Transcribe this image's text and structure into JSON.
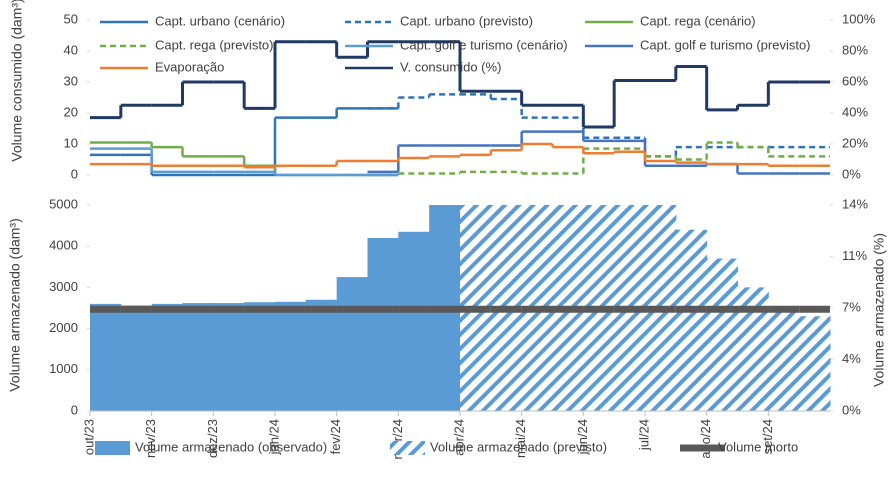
{
  "chart_data": [
    {
      "type": "line",
      "y_label": "Volume consumido (dam³)",
      "ylim": [
        0,
        50
      ],
      "yticks": [
        0,
        10,
        20,
        30,
        40,
        50
      ],
      "y2lim": [
        0,
        100
      ],
      "y2ticks": [
        {
          "value": 0,
          "label": "0%"
        },
        {
          "value": 20,
          "label": "20%"
        },
        {
          "value": 40,
          "label": "40%"
        },
        {
          "value": 60,
          "label": "60%"
        },
        {
          "value": 80,
          "label": "80%"
        },
        {
          "value": 100,
          "label": "100%"
        }
      ],
      "series": [
        {
          "name": "Capt. urbano (cenário)",
          "color": "#2e75b6",
          "style": "solid",
          "values": [
            6.5,
            6.5,
            0,
            0,
            0,
            0,
            18.5,
            18.5,
            21.5,
            21.5,
            null,
            null,
            null,
            null,
            null,
            null,
            null,
            null,
            null,
            null,
            null,
            null,
            null,
            null
          ]
        },
        {
          "name": "Capt. urbano (previsto)",
          "color": "#2e75b6",
          "style": "dashed",
          "values": [
            null,
            null,
            null,
            null,
            null,
            null,
            null,
            null,
            null,
            21.5,
            25,
            26,
            26,
            24.5,
            18.5,
            18.5,
            12,
            12,
            6,
            9,
            9,
            9,
            9,
            9
          ]
        },
        {
          "name": "Capt. rega (cenário)",
          "color": "#70ad47",
          "style": "solid",
          "values": [
            10.5,
            10.5,
            9,
            6,
            6,
            3,
            0,
            0,
            0,
            0,
            null,
            null,
            null,
            null,
            null,
            null,
            null,
            null,
            null,
            null,
            null,
            null,
            null,
            null
          ]
        },
        {
          "name": "Capt. rega (previsto)",
          "color": "#70ad47",
          "style": "dashed",
          "values": [
            null,
            null,
            null,
            null,
            null,
            null,
            null,
            null,
            null,
            0,
            0.5,
            0.5,
            1,
            1,
            0.5,
            0.5,
            8.5,
            8.5,
            6,
            5,
            10.5,
            9,
            6,
            6
          ]
        },
        {
          "name": "Capt. golf e turismo (cenário)",
          "color": "#5b9bd5",
          "style": "solid",
          "values": [
            8.5,
            8.5,
            1,
            1,
            1,
            1,
            0,
            0,
            0,
            0,
            null,
            null,
            null,
            null,
            null,
            null,
            null,
            null,
            null,
            null,
            null,
            null,
            null,
            null
          ]
        },
        {
          "name": "Capt. golf e turismo (previsto)",
          "color": "#4472c4",
          "style": "solid",
          "values": [
            null,
            null,
            null,
            null,
            null,
            null,
            null,
            null,
            null,
            1,
            9.5,
            9.5,
            9.5,
            9.5,
            14,
            14,
            11,
            11,
            3,
            3,
            3.5,
            0.5,
            0.5,
            0.5
          ]
        },
        {
          "name": "Evaporação",
          "color": "#ed7d31",
          "style": "solid",
          "values": [
            3.5,
            3.5,
            3,
            3,
            3,
            2.5,
            3,
            3,
            4.5,
            4.5,
            5.5,
            6,
            6.5,
            8,
            10,
            9,
            7,
            7.5,
            4.5,
            4,
            3.5,
            3.5,
            3,
            3
          ]
        },
        {
          "name": "V. consumido (%)",
          "color": "#1f3864",
          "style": "solid",
          "axis": "y2",
          "values": [
            37,
            45,
            45,
            60,
            60,
            43,
            86,
            86,
            76,
            86,
            86,
            86,
            54,
            54,
            45,
            45,
            31,
            61,
            61,
            70,
            42,
            45,
            60,
            60
          ]
        }
      ]
    },
    {
      "type": "area",
      "y_label": "Volume armazenado (dam³)",
      "y2_label": "Volume armazenado (%)",
      "categories": [
        "out/23",
        null,
        "nov/23",
        null,
        "dez/23",
        null,
        "jan/24",
        null,
        "fev/24",
        null,
        "mar/24",
        null,
        "abr/24",
        null,
        "mai/24",
        null,
        "jun/24",
        null,
        "jul/24",
        null,
        "ago/24",
        null,
        "set/24",
        null
      ],
      "ylim": [
        0,
        5000
      ],
      "yticks": [
        0,
        1000,
        2000,
        3000,
        4000,
        5000
      ],
      "y2lim": [
        0,
        14
      ],
      "y2ticks": [
        {
          "value": 0,
          "label": "0%"
        },
        {
          "value": 3.5,
          "label": "4%"
        },
        {
          "value": 7,
          "label": "7%"
        },
        {
          "value": 10.5,
          "label": "11%"
        },
        {
          "value": 14,
          "label": "14%"
        }
      ],
      "series": [
        {
          "name": "Volume armazenado (observado)",
          "color": "#5b9bd5",
          "fill": "solid",
          "values": [
            2600,
            2560,
            2600,
            2620,
            2620,
            2640,
            2650,
            2700,
            3250,
            4200,
            4350,
            5000,
            null,
            null,
            null,
            null,
            null,
            null,
            null,
            null,
            null,
            null,
            null,
            null
          ]
        },
        {
          "name": "Volume armazenado (previsto)",
          "color": "#5b9bd5",
          "fill": "hatch",
          "values": [
            null,
            null,
            null,
            null,
            null,
            null,
            null,
            null,
            null,
            null,
            null,
            null,
            5000,
            5000,
            5000,
            5000,
            5000,
            5000,
            5000,
            4400,
            3700,
            3000,
            2400,
            2300
          ]
        },
        {
          "name": "Volume morto",
          "color": "#595959",
          "fill": "line",
          "values": [
            2470,
            2470,
            2470,
            2470,
            2470,
            2470,
            2470,
            2470,
            2470,
            2470,
            2470,
            2470,
            2470,
            2470,
            2470,
            2470,
            2470,
            2470,
            2470,
            2470,
            2470,
            2470,
            2470,
            2470
          ]
        }
      ]
    }
  ]
}
